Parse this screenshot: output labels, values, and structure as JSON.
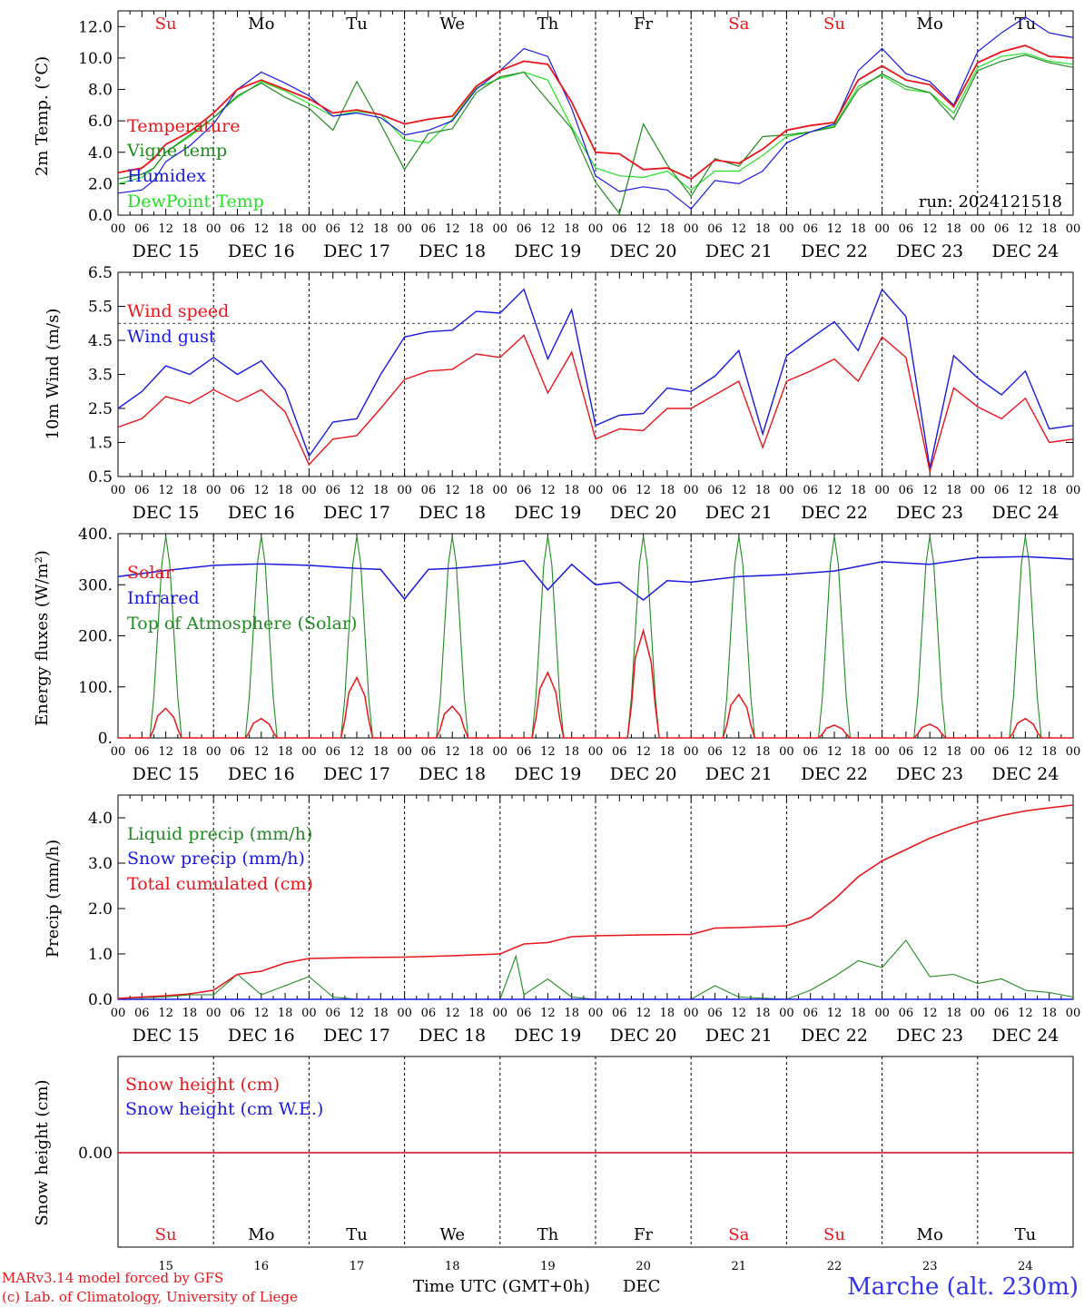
{
  "colors": {
    "temperature": "#e8161b",
    "vigne": "#1f8a1f",
    "humidex": "#1919e0",
    "dewpoint": "#22e022",
    "solar": "#e8161b",
    "infrared": "#1919e0",
    "toa": "#1f8a1f",
    "liquid": "#1f8a1f",
    "snow": "#1919e0",
    "cumul": "#e8161b",
    "weekend": "#e8161b",
    "weekday": "#000000",
    "station": "#3333ee"
  },
  "days": {
    "top_labels": [
      "Su",
      "Mo",
      "Tu",
      "We",
      "Th",
      "Fr",
      "Sa",
      "Su",
      "Mo",
      "Tu"
    ],
    "top_weekend": [
      true,
      false,
      false,
      false,
      false,
      false,
      true,
      true,
      false,
      false
    ],
    "bottom_labels": [
      "Su",
      "Mo",
      "Tu",
      "We",
      "Th",
      "Fr",
      "Sa",
      "Su",
      "Mo",
      "Tu"
    ],
    "bottom_numbers": [
      "15",
      "16",
      "17",
      "18",
      "19",
      "20",
      "21",
      "22",
      "23",
      "24"
    ],
    "date_labels": [
      "DEC 15",
      "DEC 16",
      "DEC 17",
      "DEC 18",
      "DEC 19",
      "DEC 20",
      "DEC 21",
      "DEC 22",
      "DEC 23",
      "DEC 24"
    ],
    "hour_labels": [
      "00",
      "06",
      "12",
      "18"
    ],
    "final_hour": "00"
  },
  "footer": {
    "model_line": "MARv3.14 model forced by GFS",
    "credit_line": "(c) Lab. of Climatology, University of Liege",
    "time_axis": "Time UTC (GMT+0h)",
    "month": "DEC",
    "station": "Marche (alt. 230m)"
  },
  "chart_data": [
    {
      "type": "line",
      "id": "temp",
      "ylabel": "2m Temp. (°C)",
      "ylim": [
        0,
        13
      ],
      "yticks": [
        0,
        2,
        4,
        6,
        8,
        10,
        12
      ],
      "ytick_labels": [
        "0.0",
        "2.0",
        "4.0",
        "6.0",
        "8.0",
        "10.0",
        "12.0"
      ],
      "annotation": "run: 2024121518",
      "x_hours": [
        0,
        6,
        9,
        12,
        18,
        24,
        30,
        36,
        42,
        48,
        54,
        60,
        66,
        72,
        78,
        84,
        90,
        96,
        102,
        108,
        114,
        120,
        126,
        132,
        138,
        144,
        150,
        156,
        162,
        168,
        174,
        180,
        186,
        192,
        198,
        204,
        210,
        216,
        222,
        228,
        234,
        240
      ],
      "series": [
        {
          "name": "Temperature",
          "color": "#e8161b",
          "values": [
            2.7,
            3.0,
            3.6,
            4.5,
            5.3,
            6.5,
            8.0,
            8.6,
            8.0,
            7.4,
            6.5,
            6.7,
            6.4,
            5.8,
            6.1,
            6.3,
            8.2,
            9.2,
            9.8,
            9.6,
            7.2,
            4.0,
            3.9,
            2.9,
            3.0,
            2.3,
            3.5,
            3.3,
            4.2,
            5.4,
            5.7,
            5.9,
            8.6,
            9.5,
            8.6,
            8.3,
            6.9,
            9.7,
            10.4,
            10.8,
            10.1,
            10.0
          ]
        },
        {
          "name": "Vigne temp",
          "color": "#1f8a1f",
          "values": [
            2.3,
            2.6,
            3.0,
            4.0,
            5.1,
            6.2,
            7.6,
            8.4,
            7.5,
            6.8,
            5.4,
            8.5,
            5.8,
            2.9,
            5.2,
            5.5,
            7.8,
            8.8,
            9.1,
            7.3,
            5.5,
            2.1,
            0.1,
            5.8,
            3.2,
            1.2,
            3.6,
            3.1,
            5.0,
            5.1,
            5.3,
            5.6,
            8.0,
            9.0,
            8.2,
            7.8,
            6.1,
            9.2,
            9.8,
            10.2,
            9.7,
            9.4
          ]
        },
        {
          "name": "Humidex",
          "color": "#1919e0",
          "values": [
            1.4,
            1.6,
            2.2,
            3.4,
            4.4,
            5.8,
            8.0,
            9.1,
            8.4,
            7.6,
            6.3,
            6.5,
            6.2,
            5.1,
            5.4,
            6.0,
            8.0,
            9.2,
            10.6,
            10.1,
            6.8,
            2.5,
            1.5,
            1.8,
            1.6,
            0.4,
            2.2,
            2.0,
            2.8,
            4.6,
            5.3,
            5.8,
            9.2,
            10.6,
            9.0,
            8.5,
            7.0,
            10.4,
            11.6,
            12.6,
            11.6,
            11.3
          ]
        },
        {
          "name": "DewPoint Temp",
          "color": "#22e022",
          "values": [
            2.0,
            2.4,
            3.0,
            4.0,
            5.0,
            6.2,
            7.5,
            8.5,
            7.9,
            7.1,
            6.3,
            6.6,
            6.4,
            4.8,
            4.6,
            6.1,
            8.1,
            8.7,
            9.1,
            8.6,
            5.6,
            3.0,
            2.5,
            2.4,
            2.8,
            1.6,
            2.8,
            2.8,
            3.8,
            5.0,
            5.3,
            5.7,
            8.2,
            8.9,
            8.0,
            7.8,
            6.5,
            9.4,
            10.1,
            10.3,
            9.8,
            9.6
          ]
        }
      ]
    },
    {
      "type": "line",
      "id": "wind",
      "ylabel": "10m Wind (m/s)",
      "ylim": [
        0.5,
        6.5
      ],
      "yticks": [
        0.5,
        1.5,
        2.5,
        3.5,
        4.5,
        5.5,
        6.5
      ],
      "ytick_labels": [
        "0.5",
        "1.5",
        "2.5",
        "3.5",
        "4.5",
        "5.5",
        "6.5"
      ],
      "reference_line": 5,
      "x_hours": [
        0,
        6,
        12,
        18,
        24,
        30,
        36,
        42,
        48,
        54,
        60,
        66,
        72,
        78,
        84,
        90,
        96,
        102,
        108,
        114,
        120,
        126,
        132,
        138,
        144,
        150,
        156,
        162,
        168,
        174,
        180,
        186,
        192,
        198,
        204,
        210,
        216,
        222,
        228,
        234,
        240
      ],
      "series": [
        {
          "name": "Wind speed",
          "color": "#e8161b",
          "values": [
            1.95,
            2.2,
            2.85,
            2.65,
            3.05,
            2.7,
            3.05,
            2.4,
            0.85,
            1.6,
            1.7,
            2.5,
            3.35,
            3.6,
            3.65,
            4.1,
            4.0,
            4.65,
            2.95,
            4.15,
            1.6,
            1.9,
            1.85,
            2.5,
            2.5,
            2.9,
            3.3,
            1.35,
            3.3,
            3.6,
            3.95,
            3.3,
            4.6,
            4.0,
            0.65,
            3.1,
            2.55,
            2.2,
            2.8,
            1.5,
            1.6
          ]
        },
        {
          "name": "Wind gust",
          "color": "#1919e0",
          "values": [
            2.5,
            3.0,
            3.75,
            3.5,
            4.0,
            3.5,
            3.9,
            3.05,
            1.1,
            2.1,
            2.2,
            3.5,
            4.6,
            4.75,
            4.8,
            5.35,
            5.3,
            6.0,
            3.95,
            5.4,
            2.0,
            2.3,
            2.35,
            3.1,
            3.0,
            3.45,
            4.2,
            1.75,
            4.05,
            4.55,
            5.05,
            4.2,
            6.0,
            5.2,
            0.75,
            4.05,
            3.4,
            2.9,
            3.6,
            1.9,
            2.0
          ]
        }
      ]
    },
    {
      "type": "line",
      "id": "energy",
      "ylabel": "Energy fluxes (W/m²)",
      "ylim": [
        0,
        400
      ],
      "yticks": [
        0,
        100,
        200,
        300,
        400
      ],
      "ytick_labels": [
        "0.",
        "100.",
        "200.",
        "300.",
        "400."
      ],
      "solar_peaks": [
        {
          "day": 0,
          "peak": 58
        },
        {
          "day": 1,
          "peak": 38
        },
        {
          "day": 2,
          "peak": 118
        },
        {
          "day": 3,
          "peak": 62
        },
        {
          "day": 4,
          "peak": 128
        },
        {
          "day": 5,
          "peak": 210
        },
        {
          "day": 6,
          "peak": 85
        },
        {
          "day": 7,
          "peak": 25
        },
        {
          "day": 8,
          "peak": 27
        },
        {
          "day": 9,
          "peak": 38
        }
      ],
      "toa_peak": 395,
      "infrared_hours": [
        0,
        12,
        24,
        36,
        48,
        60,
        66,
        72,
        78,
        84,
        96,
        102,
        108,
        114,
        120,
        126,
        132,
        138,
        144,
        156,
        168,
        180,
        192,
        204,
        216,
        228,
        240
      ],
      "infrared_values": [
        316,
        328,
        338,
        341,
        338,
        332,
        330,
        272,
        330,
        332,
        340,
        347,
        290,
        340,
        300,
        305,
        270,
        308,
        305,
        316,
        320,
        327,
        345,
        340,
        353,
        355,
        350
      ],
      "series": [
        {
          "name": "Solar",
          "color": "#e8161b"
        },
        {
          "name": "Infrared",
          "color": "#1919e0"
        },
        {
          "name": "Top of Atmosphere (Solar)",
          "color": "#1f8a1f"
        }
      ]
    },
    {
      "type": "line",
      "id": "precip",
      "ylabel": "Precip (mm/h)",
      "ylim": [
        0,
        4.5
      ],
      "yticks": [
        0,
        1,
        2,
        3,
        4
      ],
      "ytick_labels": [
        "0.0",
        "1.0",
        "2.0",
        "3.0",
        "4.0"
      ],
      "liquid_hours": [
        0,
        12,
        18,
        24,
        30,
        36,
        42,
        48,
        54,
        60,
        66,
        72,
        96,
        100,
        102,
        108,
        114,
        120,
        144,
        150,
        156,
        168,
        174,
        180,
        186,
        192,
        198,
        204,
        210,
        216,
        222,
        228,
        234,
        240
      ],
      "liquid_values": [
        0.02,
        0.05,
        0.1,
        0.1,
        0.55,
        0.1,
        0.3,
        0.5,
        0.05,
        0.0,
        0.0,
        0.0,
        0.0,
        0.95,
        0.1,
        0.45,
        0.05,
        0.0,
        0.0,
        0.3,
        0.05,
        0.0,
        0.2,
        0.5,
        0.85,
        0.7,
        1.3,
        0.5,
        0.55,
        0.35,
        0.45,
        0.2,
        0.15,
        0.05
      ],
      "cumul_hours": [
        0,
        12,
        18,
        24,
        30,
        36,
        42,
        48,
        60,
        72,
        84,
        96,
        102,
        108,
        114,
        120,
        132,
        144,
        150,
        156,
        168,
        174,
        180,
        186,
        192,
        198,
        204,
        210,
        216,
        222,
        228,
        234,
        240
      ],
      "cumul_values": [
        0.02,
        0.08,
        0.12,
        0.2,
        0.55,
        0.62,
        0.8,
        0.9,
        0.92,
        0.93,
        0.96,
        1.0,
        1.22,
        1.25,
        1.38,
        1.4,
        1.42,
        1.43,
        1.57,
        1.58,
        1.62,
        1.8,
        2.2,
        2.7,
        3.05,
        3.3,
        3.55,
        3.75,
        3.92,
        4.05,
        4.15,
        4.22,
        4.28
      ],
      "series": [
        {
          "name": "Liquid precip (mm/h)",
          "color": "#1f8a1f"
        },
        {
          "name": "Snow precip (mm/h)",
          "color": "#1919e0"
        },
        {
          "name": "Total cumulated (cm)",
          "color": "#e8161b"
        }
      ]
    },
    {
      "type": "line",
      "id": "snow",
      "ylabel": "Snow height (cm)",
      "ytick_labels": [
        "0.00"
      ],
      "series": [
        {
          "name": "Snow height (cm)",
          "color": "#e8161b",
          "values": [
            0,
            0
          ]
        },
        {
          "name": "Snow height (cm W.E.)",
          "color": "#1919e0",
          "values": [
            0,
            0
          ]
        }
      ]
    }
  ]
}
